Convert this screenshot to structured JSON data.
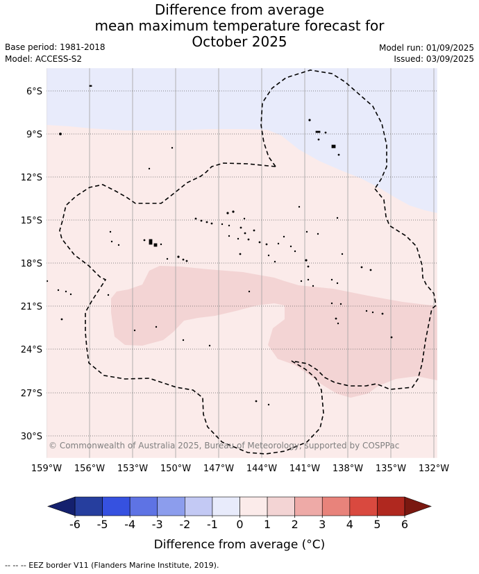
{
  "title": {
    "line1": "Difference from average",
    "line2": "mean maximum temperature forecast for",
    "line3": "October 2025"
  },
  "meta": {
    "base_period": "Base period: 1981-2018",
    "model": "Model: ACCESS-S2",
    "model_run": "Model run: 01/09/2025",
    "issued": "Issued: 03/09/2025"
  },
  "map": {
    "lon_labels": [
      "159°W",
      "156°W",
      "153°W",
      "150°W",
      "147°W",
      "144°W",
      "141°W",
      "138°W",
      "135°W",
      "132°W"
    ],
    "lat_labels": [
      "6°S",
      "9°S",
      "12°S",
      "15°S",
      "18°S",
      "21°S",
      "24°S",
      "27°S",
      "30°S"
    ],
    "copyright": "© Commonwealth of Australia 2025, Bureau of Meteorology, supported by COSPPac",
    "colors": {
      "neg_0_1": "#e8ebfb",
      "pos_0_1": "#fbebea",
      "pos_1_2": "#f3d4d4",
      "eez_border": "#000000",
      "grid": "#a0a0a0"
    }
  },
  "colorbar": {
    "ticks": [
      "-6",
      "-5",
      "-4",
      "-3",
      "-2",
      "-1",
      "0",
      "1",
      "2",
      "3",
      "4",
      "5",
      "6"
    ],
    "colors": [
      "#263e9e",
      "#3651e0",
      "#5e73e4",
      "#8c9ded",
      "#c3c9f4",
      "#e8ebfb",
      "#fbebea",
      "#f3d4d4",
      "#eeaaa7",
      "#e8837b",
      "#d9493f",
      "#b0281f"
    ],
    "under_color": "#14206e",
    "over_color": "#7a1810",
    "title": "Difference from average (°C)"
  },
  "footer": "-- -- -- EEZ border V11 (Flanders Marine Institute, 2019)."
}
